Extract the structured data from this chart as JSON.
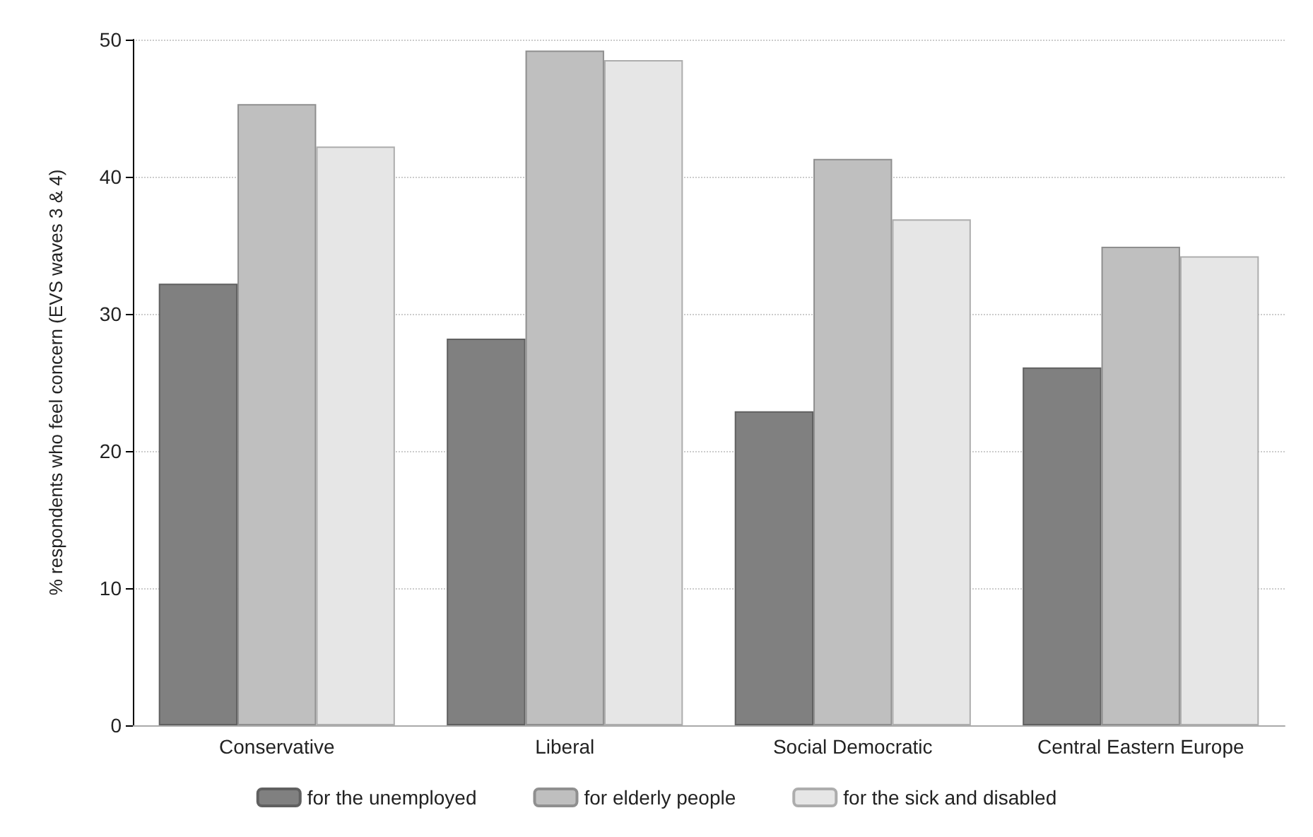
{
  "chart_data": {
    "type": "bar",
    "ylabel": "% respondents who feel concern (EVS waves 3 & 4)",
    "categories": [
      "Conservative",
      "Liberal",
      "Social Democratic",
      "Central Eastern Europe"
    ],
    "series": [
      {
        "name": "for the unemployed",
        "color": "#808080",
        "values": [
          32.2,
          28.2,
          22.9,
          26.1
        ]
      },
      {
        "name": "for elderly people",
        "color": "#bfbfbf",
        "values": [
          45.3,
          49.2,
          41.3,
          34.9
        ]
      },
      {
        "name": "for the sick and disabled",
        "color": "#e6e6e6",
        "values": [
          42.2,
          48.5,
          36.9,
          34.2
        ]
      }
    ],
    "ylim": [
      0,
      50
    ],
    "yticks": [
      0,
      10,
      20,
      30,
      40,
      50
    ],
    "grid": "y",
    "legend": "bottom"
  }
}
